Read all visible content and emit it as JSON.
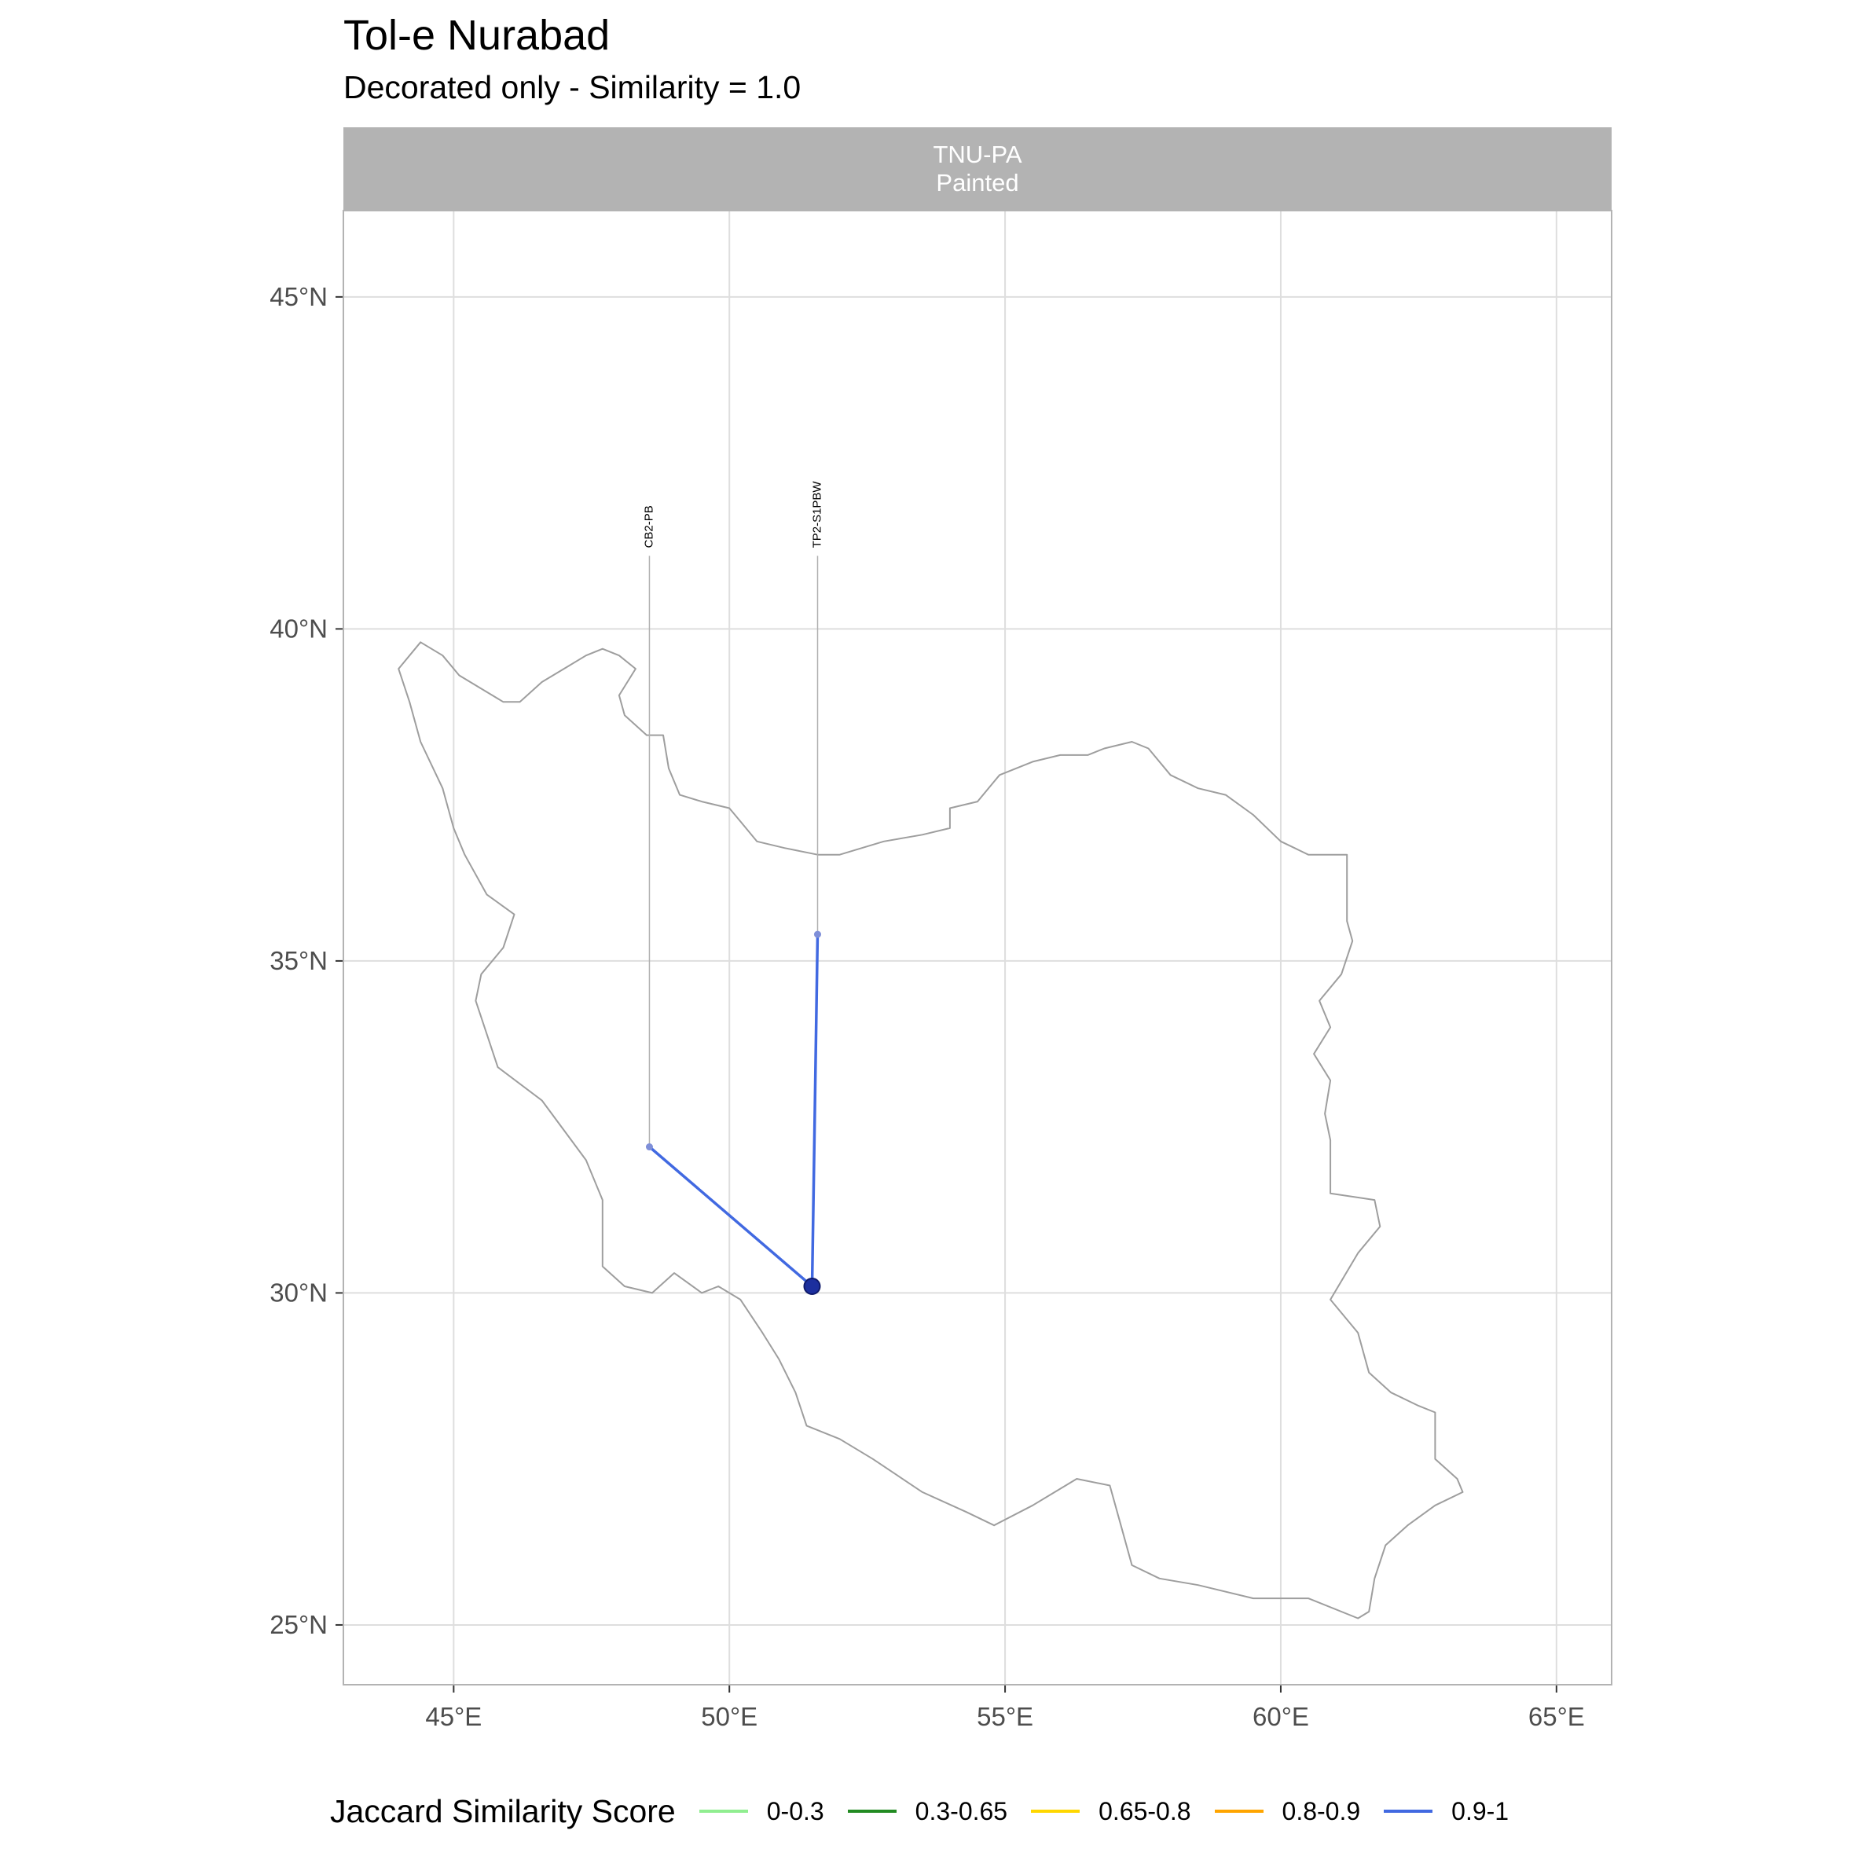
{
  "title": "Tol-e Nurabad",
  "subtitle": "Decorated only - Similarity = 1.0",
  "facet": {
    "line1": "TNU-PA",
    "line2": "Painted"
  },
  "axes": {
    "x_ticks": [
      {
        "value": 45,
        "label": "45°E"
      },
      {
        "value": 50,
        "label": "50°E"
      },
      {
        "value": 55,
        "label": "55°E"
      },
      {
        "value": 60,
        "label": "60°E"
      },
      {
        "value": 65,
        "label": "65°E"
      }
    ],
    "y_ticks": [
      {
        "value": 25,
        "label": "25°N"
      },
      {
        "value": 30,
        "label": "30°N"
      },
      {
        "value": 35,
        "label": "35°N"
      },
      {
        "value": 40,
        "label": "40°N"
      },
      {
        "value": 45,
        "label": "45°N"
      }
    ],
    "xlim": [
      43,
      66
    ],
    "ylim": [
      24.1,
      46.3
    ]
  },
  "map": {
    "outline_color": "#9e9e9e",
    "outline": [
      [
        44.0,
        39.4
      ],
      [
        44.4,
        39.8
      ],
      [
        44.8,
        39.6
      ],
      [
        45.1,
        39.3
      ],
      [
        45.5,
        39.1
      ],
      [
        45.9,
        38.9
      ],
      [
        46.2,
        38.9
      ],
      [
        46.6,
        39.2
      ],
      [
        47.0,
        39.4
      ],
      [
        47.4,
        39.6
      ],
      [
        47.7,
        39.7
      ],
      [
        48.0,
        39.6
      ],
      [
        48.3,
        39.4
      ],
      [
        48.0,
        39.0
      ],
      [
        48.1,
        38.7
      ],
      [
        48.5,
        38.4
      ],
      [
        48.8,
        38.4
      ],
      [
        48.9,
        37.9
      ],
      [
        49.1,
        37.5
      ],
      [
        49.5,
        37.4
      ],
      [
        50.0,
        37.3
      ],
      [
        50.2,
        37.1
      ],
      [
        50.5,
        36.8
      ],
      [
        51.0,
        36.7
      ],
      [
        51.6,
        36.6
      ],
      [
        52.0,
        36.6
      ],
      [
        52.8,
        36.8
      ],
      [
        53.5,
        36.9
      ],
      [
        54.0,
        37.0
      ],
      [
        54.0,
        37.3
      ],
      [
        54.5,
        37.4
      ],
      [
        54.9,
        37.8
      ],
      [
        55.5,
        38.0
      ],
      [
        56.0,
        38.1
      ],
      [
        56.5,
        38.1
      ],
      [
        56.8,
        38.2
      ],
      [
        57.3,
        38.3
      ],
      [
        57.6,
        38.2
      ],
      [
        58.0,
        37.8
      ],
      [
        58.5,
        37.6
      ],
      [
        59.0,
        37.5
      ],
      [
        59.5,
        37.2
      ],
      [
        60.0,
        36.8
      ],
      [
        60.5,
        36.6
      ],
      [
        61.0,
        36.6
      ],
      [
        61.2,
        36.6
      ],
      [
        61.2,
        36.1
      ],
      [
        61.2,
        35.6
      ],
      [
        61.3,
        35.3
      ],
      [
        61.1,
        34.8
      ],
      [
        60.7,
        34.4
      ],
      [
        60.9,
        34.0
      ],
      [
        60.6,
        33.6
      ],
      [
        60.9,
        33.2
      ],
      [
        60.8,
        32.7
      ],
      [
        60.9,
        32.3
      ],
      [
        60.9,
        31.5
      ],
      [
        61.7,
        31.4
      ],
      [
        61.8,
        31.0
      ],
      [
        61.4,
        30.6
      ],
      [
        60.9,
        29.9
      ],
      [
        61.4,
        29.4
      ],
      [
        61.6,
        28.8
      ],
      [
        62.0,
        28.5
      ],
      [
        62.5,
        28.3
      ],
      [
        62.8,
        28.2
      ],
      [
        62.8,
        27.5
      ],
      [
        63.2,
        27.2
      ],
      [
        63.3,
        27.0
      ],
      [
        62.8,
        26.8
      ],
      [
        62.3,
        26.5
      ],
      [
        61.9,
        26.2
      ],
      [
        61.7,
        25.7
      ],
      [
        61.6,
        25.2
      ],
      [
        61.4,
        25.1
      ],
      [
        60.5,
        25.4
      ],
      [
        59.5,
        25.4
      ],
      [
        58.5,
        25.6
      ],
      [
        57.8,
        25.7
      ],
      [
        57.3,
        25.9
      ],
      [
        57.1,
        26.5
      ],
      [
        56.9,
        27.1
      ],
      [
        56.3,
        27.2
      ],
      [
        55.5,
        26.8
      ],
      [
        54.8,
        26.5
      ],
      [
        54.3,
        26.7
      ],
      [
        53.5,
        27.0
      ],
      [
        52.6,
        27.5
      ],
      [
        52.0,
        27.8
      ],
      [
        51.4,
        28.0
      ],
      [
        51.2,
        28.5
      ],
      [
        50.9,
        29.0
      ],
      [
        50.6,
        29.4
      ],
      [
        50.2,
        29.9
      ],
      [
        49.8,
        30.1
      ],
      [
        49.5,
        30.0
      ],
      [
        49.0,
        30.3
      ],
      [
        48.6,
        30.0
      ],
      [
        48.1,
        30.1
      ],
      [
        47.7,
        30.4
      ],
      [
        47.7,
        31.0
      ],
      [
        47.7,
        31.4
      ],
      [
        47.4,
        32.0
      ],
      [
        46.6,
        32.9
      ],
      [
        45.8,
        33.4
      ],
      [
        45.6,
        33.9
      ],
      [
        45.4,
        34.4
      ],
      [
        45.5,
        34.8
      ],
      [
        45.9,
        35.2
      ],
      [
        46.1,
        35.7
      ],
      [
        45.6,
        36.0
      ],
      [
        45.2,
        36.6
      ],
      [
        45.0,
        37.0
      ],
      [
        44.8,
        37.6
      ],
      [
        44.4,
        38.3
      ],
      [
        44.2,
        38.9
      ],
      [
        44.0,
        39.4
      ]
    ]
  },
  "sites": [
    {
      "label": "CB2-PB",
      "lon": 48.55,
      "lat": 32.2
    },
    {
      "label": "TP2-S1PBW",
      "lon": 51.6,
      "lat": 35.4
    }
  ],
  "origin": {
    "lon": 51.5,
    "lat": 30.1
  },
  "links": [
    {
      "from": "CB2-PB",
      "score": "0.9-1"
    },
    {
      "from": "TP2-S1PBW",
      "score": "0.9-1"
    }
  ],
  "legend": {
    "title": "Jaccard Similarity Score",
    "items": [
      {
        "label": "0-0.3",
        "color": "#90ee90"
      },
      {
        "label": "0.3-0.65",
        "color": "#228b22"
      },
      {
        "label": "0.65-0.8",
        "color": "#ffd700"
      },
      {
        "label": "0.8-0.9",
        "color": "#ffa500"
      },
      {
        "label": "0.9-1",
        "color": "#4169e1"
      }
    ]
  }
}
